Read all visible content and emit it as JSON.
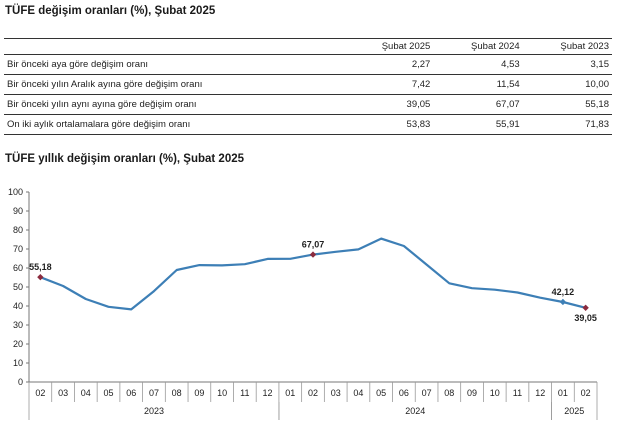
{
  "table_title": "TÜFE değişim oranları (%), Şubat 2025",
  "chart_title": "TÜFE yıllık değişim oranları (%), Şubat 2025",
  "table": {
    "headers": [
      "",
      "Şubat 2025",
      "Şubat 2024",
      "Şubat 2023"
    ],
    "rows": [
      [
        "Bir önceki aya göre değişim oranı",
        "2,27",
        "4,53",
        "3,15"
      ],
      [
        "Bir önceki yılın Aralık ayına göre değişim oranı",
        "7,42",
        "11,54",
        "10,00"
      ],
      [
        "Bir önceki yılın aynı ayına göre değişim oranı",
        "39,05",
        "67,07",
        "55,18"
      ],
      [
        "On iki aylık ortalamalara göre değişim oranı",
        "53,83",
        "55,91",
        "71,83"
      ]
    ]
  },
  "chart_data": {
    "type": "line",
    "title": "TÜFE yıllık değişim oranları (%), Şubat 2025",
    "categories": [
      "02",
      "03",
      "04",
      "05",
      "06",
      "07",
      "08",
      "09",
      "10",
      "11",
      "12",
      "01",
      "02",
      "03",
      "04",
      "05",
      "06",
      "07",
      "08",
      "09",
      "10",
      "11",
      "12",
      "01",
      "02"
    ],
    "year_groups": [
      {
        "label": "2023",
        "start": 0,
        "end": 10
      },
      {
        "label": "2024",
        "start": 11,
        "end": 22
      },
      {
        "label": "2025",
        "start": 23,
        "end": 24
      }
    ],
    "values": [
      55.18,
      50.51,
      43.68,
      39.59,
      38.21,
      47.83,
      58.94,
      61.53,
      61.36,
      61.98,
      64.77,
      64.86,
      67.07,
      68.5,
      69.8,
      75.45,
      71.6,
      61.78,
      51.97,
      49.38,
      48.58,
      47.09,
      44.38,
      42.12,
      39.05
    ],
    "labeled_points": [
      {
        "index": 0,
        "label": "55,18"
      },
      {
        "index": 12,
        "label": "67,07"
      },
      {
        "index": 23,
        "label": "42,12"
      },
      {
        "index": 24,
        "label": "39,05"
      }
    ],
    "ylim": [
      0,
      100
    ],
    "yticks": [
      0,
      10,
      20,
      30,
      40,
      50,
      60,
      70,
      80,
      90,
      100
    ],
    "line_color": "#3d7fb6",
    "marker_color": "#8b2b3e"
  }
}
